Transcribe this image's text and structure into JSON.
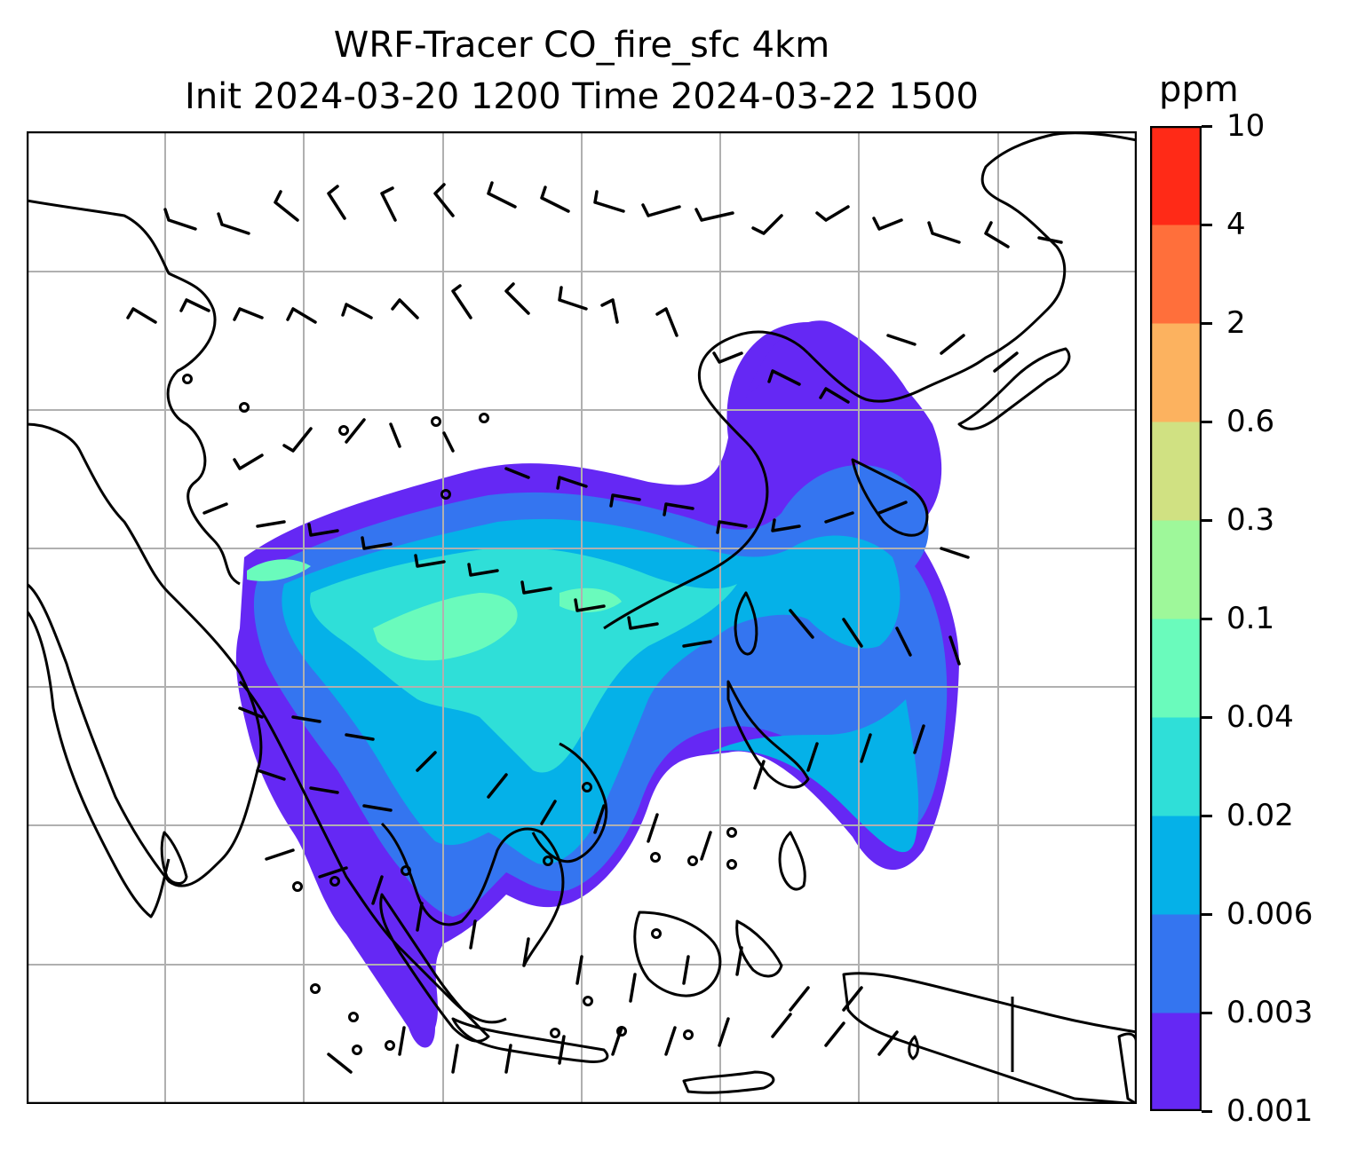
{
  "title_line1": "WRF-Tracer CO_fire_sfc 4km",
  "title_line2": "Init 2024-03-20 1200 Time 2024-03-22 1500",
  "colorbar": {
    "unit": "ppm",
    "levels": [
      "0.001",
      "0.003",
      "0.006",
      "0.02",
      "0.04",
      "0.1",
      "0.3",
      "0.6",
      "2",
      "4",
      "10"
    ],
    "colors": [
      "#6528f4",
      "#3475f0",
      "#05b1e8",
      "#2fdfd8",
      "#6afbbc",
      "#9ef89a",
      "#d0e182",
      "#fcb25f",
      "#ff6f3b",
      "#ff2a17"
    ]
  },
  "map": {
    "field": "CO_fire_sfc",
    "overlays": [
      "coastlines",
      "country-borders",
      "lat-lon-gridlines",
      "wind-barbs"
    ],
    "gridline_color": "#b0b0b0"
  }
}
